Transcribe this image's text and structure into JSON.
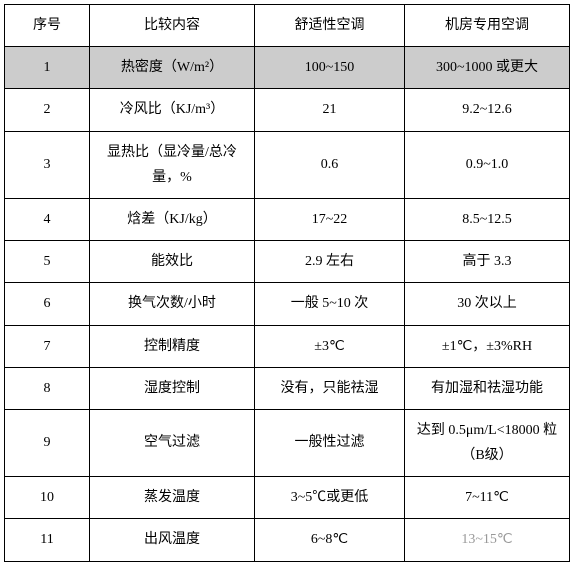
{
  "table": {
    "headers": [
      "序号",
      "比较内容",
      "舒适性空调",
      "机房专用空调"
    ],
    "rows": [
      {
        "cells": [
          "1",
          "热密度（W/m²）",
          "100~150",
          "300~1000 或更大"
        ],
        "highlight": true
      },
      {
        "cells": [
          "2",
          "冷风比（KJ/m³）",
          "21",
          "9.2~12.6"
        ],
        "highlight": false
      },
      {
        "cells": [
          "3",
          "显热比（显冷量/总冷量，%",
          "0.6",
          "0.9~1.0"
        ],
        "highlight": false
      },
      {
        "cells": [
          "4",
          "焓差（KJ/kg）",
          "17~22",
          "8.5~12.5"
        ],
        "highlight": false
      },
      {
        "cells": [
          "5",
          "能效比",
          "2.9 左右",
          "高于 3.3"
        ],
        "highlight": false
      },
      {
        "cells": [
          "6",
          "换气次数/小时",
          "一般 5~10 次",
          "30 次以上"
        ],
        "highlight": false
      },
      {
        "cells": [
          "7",
          "控制精度",
          "±3℃",
          "±1℃，±3%RH"
        ],
        "highlight": false
      },
      {
        "cells": [
          "8",
          "湿度控制",
          "没有，只能祛湿",
          "有加湿和祛湿功能"
        ],
        "highlight": false
      },
      {
        "cells": [
          "9",
          "空气过滤",
          "一般性过滤",
          "达到 0.5μm/L<18000 粒（B级）"
        ],
        "highlight": false
      },
      {
        "cells": [
          "10",
          "蒸发温度",
          "3~5℃或更低",
          "7~11℃"
        ],
        "highlight": false
      },
      {
        "cells": [
          "11",
          "出风温度",
          "6~8℃",
          "13~15℃"
        ],
        "highlight": false,
        "fadedCols": [
          3
        ]
      }
    ],
    "colors": {
      "border": "#000000",
      "highlight_bg": "#cccccc",
      "background": "#ffffff",
      "faded_text": "#999999"
    },
    "fontsize": 14
  }
}
